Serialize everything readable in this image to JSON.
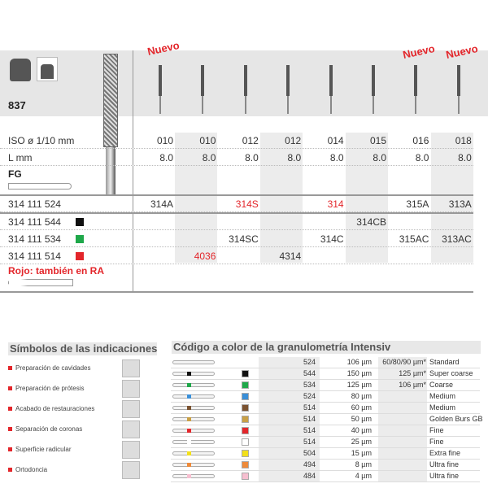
{
  "product": {
    "code": "837",
    "nuevo_label": "Nuevo",
    "nuevo_columns": [
      0,
      6,
      7
    ]
  },
  "table": {
    "iso_label": "ISO ø 1/10 mm",
    "l_label": "L mm",
    "fg_label": "FG",
    "iso": [
      "010",
      "010",
      "012",
      "012",
      "014",
      "015",
      "016",
      "018"
    ],
    "length": [
      "8.0",
      "8.0",
      "8.0",
      "8.0",
      "8.0",
      "8.0",
      "8.0",
      "8.0"
    ],
    "rows": [
      {
        "ref": "314 111 524",
        "swatch": "",
        "cells": [
          "314A",
          "",
          "314S",
          "",
          "314",
          "",
          "315A",
          "313A"
        ],
        "red": [
          2,
          4
        ]
      },
      {
        "ref": "314 111 544",
        "swatch": "#111111",
        "cells": [
          "",
          "",
          "",
          "",
          "",
          "314CB",
          "",
          ""
        ],
        "red": []
      },
      {
        "ref": "314 111 534",
        "swatch": "#1fa84a",
        "cells": [
          "",
          "",
          "314SC",
          "",
          "314C",
          "",
          "315AC",
          "313AC"
        ],
        "red": []
      },
      {
        "ref": "314 111 514",
        "swatch": "#e3262b",
        "cells": [
          "",
          "4036",
          "",
          "4314",
          "",
          "",
          "",
          ""
        ],
        "red": [
          1
        ]
      }
    ],
    "ra_note": "Rojo: también en RA"
  },
  "indications": {
    "title": "Símbolos de las indicaciones",
    "items": [
      "Preparación de cavidades",
      "Preparación de prótesis",
      "Acabado de restauraciones",
      "Separación de coronas",
      "Superficie radicular",
      "Ortodoncia"
    ]
  },
  "grit": {
    "title": "Código a color de la granulometría Intensiv",
    "rows": [
      {
        "color": "",
        "code": "524",
        "grit": "106 µm",
        "alt": "60/80/90 µm*",
        "name": "Standard"
      },
      {
        "color": "#111111",
        "code": "544",
        "grit": "150 µm",
        "alt": "125 µm*",
        "name": "Super coarse"
      },
      {
        "color": "#1fa84a",
        "code": "534",
        "grit": "125 µm",
        "alt": "106 µm*",
        "name": "Coarse"
      },
      {
        "color": "#3a8fd8",
        "code": "524",
        "grit": "80 µm",
        "alt": "",
        "name": "Medium"
      },
      {
        "color": "#7a5230",
        "code": "514",
        "grit": "60 µm",
        "alt": "",
        "name": "Medium"
      },
      {
        "color": "#c9a046",
        "code": "514",
        "grit": "50 µm",
        "alt": "",
        "name": "Golden Burs GB"
      },
      {
        "color": "#e3262b",
        "code": "514",
        "grit": "40 µm",
        "alt": "",
        "name": "Fine"
      },
      {
        "color": "#ffffff",
        "code": "514",
        "grit": "25 µm",
        "alt": "",
        "name": "Fine"
      },
      {
        "color": "#f2e01a",
        "code": "504",
        "grit": "15 µm",
        "alt": "",
        "name": "Extra fine"
      },
      {
        "color": "#ee8a3a",
        "code": "494",
        "grit": "8 µm",
        "alt": "",
        "name": "Ultra fine"
      },
      {
        "color": "#f6bfd0",
        "code": "484",
        "grit": "4 µm",
        "alt": "",
        "name": "Ultra fine"
      }
    ]
  },
  "colors": {
    "accent_red": "#e3262b"
  }
}
